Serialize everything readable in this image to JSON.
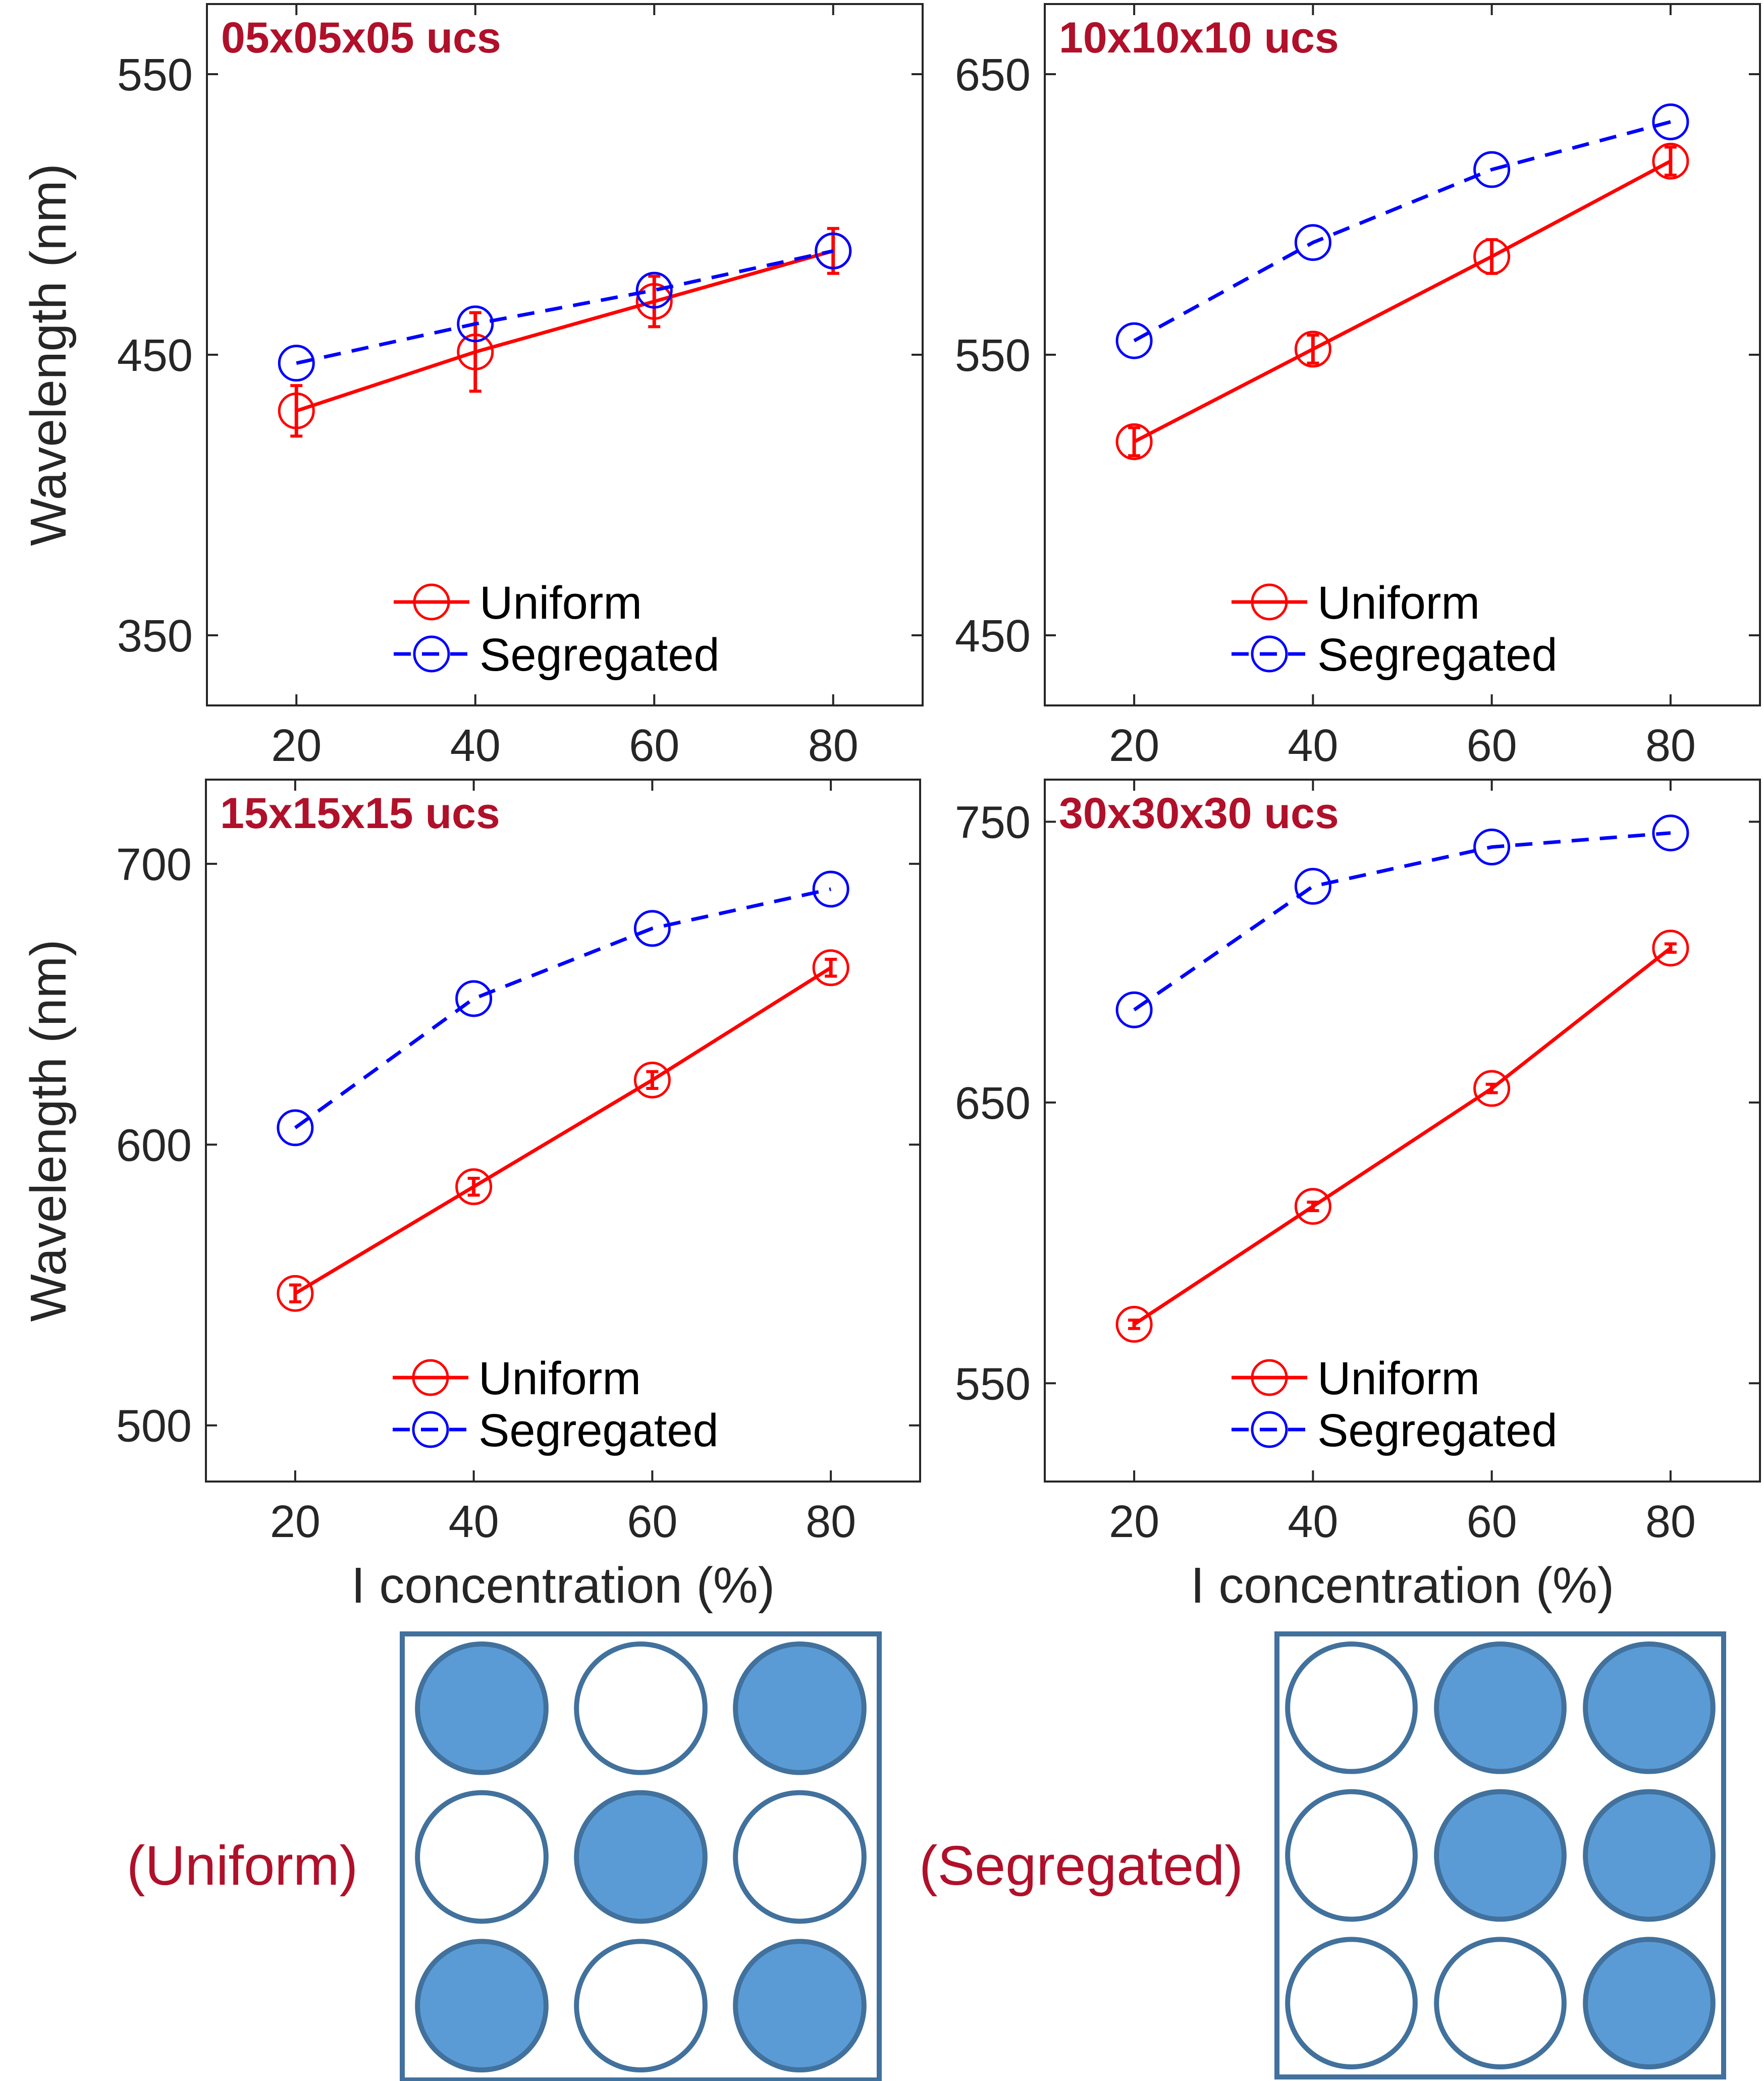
{
  "chart_data": [
    {
      "type": "line",
      "title": "05x05x05 ucs",
      "xlabel": "",
      "ylabel": "Wavelength (nm)",
      "x": [
        20,
        40,
        60,
        80
      ],
      "xticks": [
        20,
        40,
        60,
        80
      ],
      "xlim": [
        10,
        90
      ],
      "ylim": [
        325,
        575
      ],
      "yticks": [
        350,
        450,
        550
      ],
      "series": [
        {
          "name": "Uniform",
          "values": [
            430,
            451,
            469,
            487
          ],
          "err": [
            9,
            14,
            9,
            8
          ],
          "color": "#ff0000",
          "dash": "solid"
        },
        {
          "name": "Segregated",
          "values": [
            447,
            461,
            473,
            487
          ],
          "color": "#0000ff",
          "dash": "dashed"
        }
      ]
    },
    {
      "type": "line",
      "title": "10x10x10 ucs",
      "xlabel": "",
      "ylabel": "",
      "x": [
        20,
        40,
        60,
        80
      ],
      "xticks": [
        20,
        40,
        60,
        80
      ],
      "xlim": [
        10,
        90
      ],
      "ylim": [
        425,
        675
      ],
      "yticks": [
        450,
        550,
        650
      ],
      "series": [
        {
          "name": "Uniform",
          "values": [
            519,
            552,
            585,
            619
          ],
          "err": [
            5,
            5,
            6,
            5
          ],
          "color": "#ff0000",
          "dash": "solid"
        },
        {
          "name": "Segregated",
          "values": [
            555,
            590,
            616,
            633
          ],
          "color": "#0000ff",
          "dash": "dashed"
        }
      ]
    },
    {
      "type": "line",
      "title": "15x15x15 ucs",
      "xlabel": "I concentration (%)",
      "ylabel": "Wavelength (nm)",
      "x": [
        20,
        40,
        60,
        80
      ],
      "xticks": [
        20,
        40,
        60,
        80
      ],
      "xlim": [
        10,
        90
      ],
      "ylim": [
        480,
        730
      ],
      "yticks": [
        500,
        600,
        700
      ],
      "series": [
        {
          "name": "Uniform",
          "values": [
            547,
            585,
            623,
            663
          ],
          "err": [
            3,
            3,
            3,
            3
          ],
          "color": "#ff0000",
          "dash": "solid"
        },
        {
          "name": "Segregated",
          "values": [
            606,
            652,
            677,
            691
          ],
          "color": "#0000ff",
          "dash": "dashed"
        }
      ]
    },
    {
      "type": "line",
      "title": "30x30x30 ucs",
      "xlabel": "I concentration (%)",
      "ylabel": "",
      "x": [
        20,
        40,
        60,
        80
      ],
      "xticks": [
        20,
        40,
        60,
        80
      ],
      "xlim": [
        10,
        90
      ],
      "ylim": [
        515,
        765
      ],
      "yticks": [
        550,
        650,
        750
      ],
      "series": [
        {
          "name": "Uniform",
          "values": [
            571,
            613,
            655,
            705
          ],
          "err": [
            1.5,
            1.5,
            1.5,
            1.5
          ],
          "color": "#ff0000",
          "dash": "solid"
        },
        {
          "name": "Segregated",
          "values": [
            683,
            727,
            741,
            746
          ],
          "color": "#0000ff",
          "dash": "dashed"
        }
      ]
    }
  ],
  "diagrams": [
    {
      "label": "(Uniform)",
      "grid": [
        [
          1,
          0,
          1
        ],
        [
          0,
          1,
          0
        ],
        [
          1,
          0,
          1
        ]
      ]
    },
    {
      "label": "(Segregated)",
      "grid": [
        [
          0,
          1,
          1
        ],
        [
          0,
          1,
          1
        ],
        [
          0,
          0,
          1
        ]
      ]
    }
  ],
  "colors": {
    "uniform": "#ff0000",
    "segregated": "#0000ff",
    "title": "#b0102a",
    "diagram_fill": "#5b9bd5",
    "diagram_stroke": "#41719c"
  }
}
